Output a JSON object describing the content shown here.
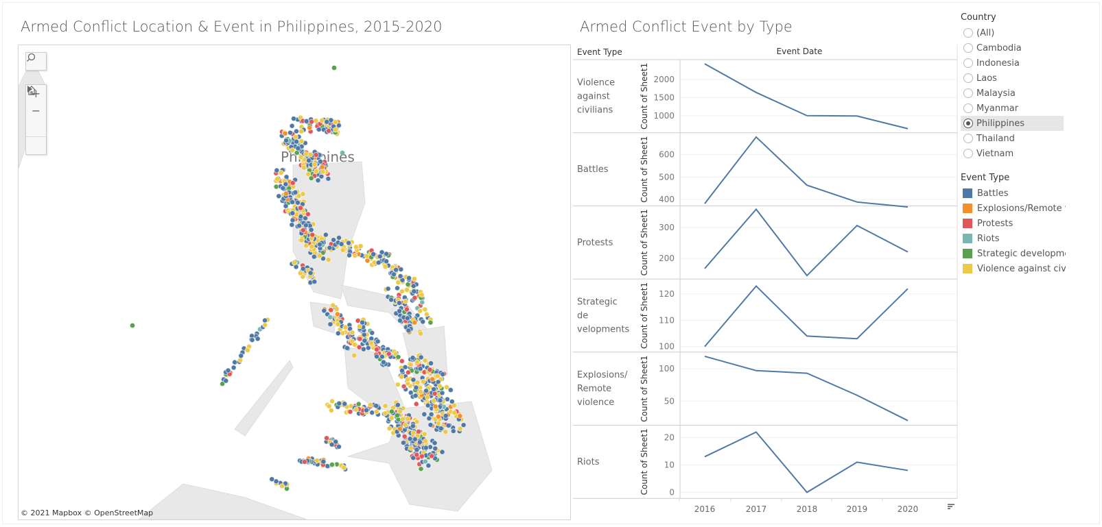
{
  "map": {
    "title": "Armed Conflict Location & Event in Philippines, 2015-2020",
    "country_label": "Philippines",
    "attribution": "© 2021 Mapbox  © OpenStreetMap",
    "controls": {
      "search_icon": "search-icon",
      "zoom_in": "+",
      "zoom_out": "−",
      "home_icon": "home-icon",
      "play_icon": "play-icon"
    }
  },
  "chart_title": "Armed Conflict Event by Type",
  "chart_data": {
    "type": "line",
    "row_header": "Event Type",
    "column_header": "Event Date",
    "ylabel": "Count of Sheet1",
    "categories": [
      "2016",
      "2017",
      "2018",
      "2019",
      "2020"
    ],
    "grid": true,
    "series": [
      {
        "name": "Violence against civilians",
        "values": [
          2430,
          1640,
          1000,
          990,
          640
        ],
        "ticks": [
          1000,
          1500,
          2000
        ],
        "ylim": [
          528,
          2547
        ]
      },
      {
        "name": "Battles",
        "values": [
          382,
          678,
          464,
          389,
          367
        ],
        "ticks": [
          400,
          500,
          600
        ],
        "ylim": [
          372,
          697
        ]
      },
      {
        "name": "Protests",
        "values": [
          167,
          360,
          144,
          307,
          221
        ],
        "ticks": [
          200,
          300
        ],
        "ylim": [
          133,
          371
        ]
      },
      {
        "name": "Strategic developments",
        "display_name": "Strategic de velopments",
        "values": [
          100,
          123,
          104,
          103,
          122
        ],
        "ticks": [
          100,
          110,
          120
        ],
        "ylim": [
          97.9,
          125.7
        ]
      },
      {
        "name": "Explosions/Remote violence",
        "display_name": "Explosions/ Remote violence",
        "values": [
          119,
          97,
          93,
          59,
          20
        ],
        "ticks": [
          50,
          100
        ],
        "ylim": [
          12.8,
          125.5
        ]
      },
      {
        "name": "Riots",
        "values": [
          13,
          22,
          0,
          11,
          8
        ],
        "ticks": [
          0,
          10,
          20
        ],
        "ylim": [
          -2.2,
          24.5
        ]
      }
    ],
    "line_color": "#4e79a7"
  },
  "country_filter": {
    "title": "Country",
    "options": [
      "(All)",
      "Cambodia",
      "Indonesia",
      "Laos",
      "Malaysia",
      "Myanmar",
      "Philippines",
      "Thailand",
      "Vietnam"
    ],
    "selected": "Philippines"
  },
  "event_legend": {
    "title": "Event Type",
    "items": [
      {
        "label": "Battles",
        "color": "#4e79a7"
      },
      {
        "label": "Explosions/Remote v...",
        "color": "#f28e2b"
      },
      {
        "label": "Protests",
        "color": "#e15759"
      },
      {
        "label": "Riots",
        "color": "#76b7b2"
      },
      {
        "label": "Strategic developme...",
        "color": "#59a14f"
      },
      {
        "label": "Violence against civil...",
        "color": "#edc948"
      }
    ]
  }
}
